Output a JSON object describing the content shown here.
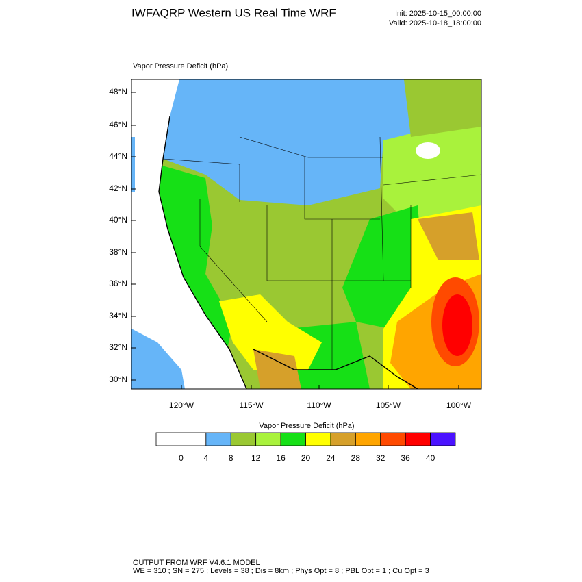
{
  "header": {
    "title": "IWFAQRP Western US Real Time WRF",
    "init": "Init: 2025-10-15_00:00:00",
    "valid": "Valid: 2025-10-18_18:00:00"
  },
  "map": {
    "title": "Vapor Pressure Deficit   (hPa)",
    "lat_labels": [
      "48°N",
      "46°N",
      "44°N",
      "42°N",
      "40°N",
      "38°N",
      "36°N",
      "34°N",
      "32°N",
      "30°N"
    ],
    "lon_labels": [
      "120°W",
      "115°W",
      "110°W",
      "105°W",
      "100°W"
    ]
  },
  "colorbar": {
    "title": "Vapor Pressure Deficit  (hPa)",
    "levels": [
      0,
      4,
      8,
      12,
      16,
      20,
      24,
      28,
      32,
      36,
      40
    ],
    "colors": [
      "#ffffff",
      "#ffffff",
      "#66b5f8",
      "#9ac832",
      "#a9f23c",
      "#16e016",
      "#ffff00",
      "#d6a02a",
      "#ffa500",
      "#ff4a00",
      "#ff0000",
      "#4a12ff"
    ]
  },
  "footer": {
    "line1": "OUTPUT FROM WRF V4.6.1 MODEL",
    "line2": "WE = 310 ; SN = 275 ; Levels = 38 ; Dis = 8km ; Phys Opt = 8 ; PBL Opt = 1 ; Cu Opt = 3"
  }
}
